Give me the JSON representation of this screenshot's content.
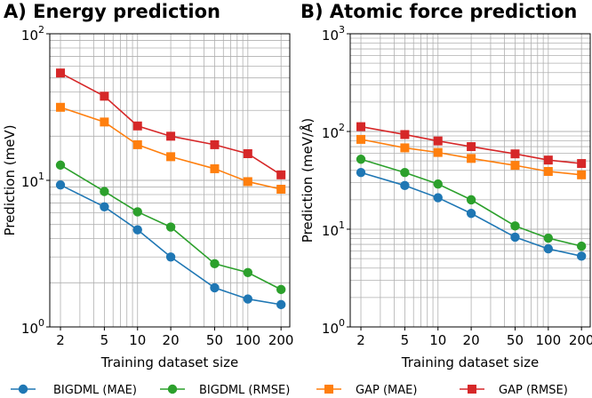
{
  "chart_data": [
    {
      "type": "line",
      "panel_title": "A) Energy prediction",
      "xlabel": "Training dataset size",
      "ylabel": "Prediction (meV)",
      "x": [
        2,
        5,
        10,
        20,
        50,
        100,
        200
      ],
      "x_tick_labels": [
        "2",
        "5",
        "10",
        "20",
        "50",
        "100",
        "200"
      ],
      "xlim": [
        1.6,
        240
      ],
      "yscale": "log",
      "ylim": [
        1,
        100
      ],
      "y_tick_labels": [
        {
          "base": "10",
          "exp": "0",
          "value": 1
        },
        {
          "base": "10",
          "exp": "1",
          "value": 10
        },
        {
          "base": "10",
          "exp": "2",
          "value": 100
        }
      ],
      "grid": true,
      "series": [
        {
          "name": "BIGDML (MAE)",
          "color": "#1f77b4",
          "marker": "circle",
          "values": [
            9.3,
            6.6,
            4.6,
            3.0,
            1.85,
            1.55,
            1.42
          ]
        },
        {
          "name": "BIGDML (RMSE)",
          "color": "#2ca02c",
          "marker": "circle",
          "values": [
            12.7,
            8.4,
            6.1,
            4.8,
            2.7,
            2.35,
            1.8
          ]
        },
        {
          "name": "GAP (MAE)",
          "color": "#ff7f0e",
          "marker": "square",
          "values": [
            31.5,
            25.0,
            17.5,
            14.5,
            12.0,
            9.8,
            8.7
          ]
        },
        {
          "name": "GAP (RMSE)",
          "color": "#d62728",
          "marker": "square",
          "values": [
            54.0,
            37.5,
            23.5,
            20.0,
            17.5,
            15.2,
            10.9
          ]
        }
      ]
    },
    {
      "type": "line",
      "panel_title": "B) Atomic force prediction",
      "xlabel": "Training dataset size",
      "ylabel": "Prediction (meV/Å)",
      "x": [
        2,
        5,
        10,
        20,
        50,
        100,
        200
      ],
      "x_tick_labels": [
        "2",
        "5",
        "10",
        "20",
        "50",
        "100",
        "200"
      ],
      "xlim": [
        1.6,
        240
      ],
      "yscale": "log",
      "ylim": [
        1,
        1000
      ],
      "y_tick_labels": [
        {
          "base": "10",
          "exp": "0",
          "value": 1
        },
        {
          "base": "10",
          "exp": "1",
          "value": 10
        },
        {
          "base": "10",
          "exp": "2",
          "value": 100
        },
        {
          "base": "10",
          "exp": "3",
          "value": 1000
        }
      ],
      "grid": true,
      "series": [
        {
          "name": "BIGDML (MAE)",
          "color": "#1f77b4",
          "marker": "circle",
          "values": [
            38,
            28,
            21,
            14.5,
            8.3,
            6.3,
            5.3
          ]
        },
        {
          "name": "BIGDML (RMSE)",
          "color": "#2ca02c",
          "marker": "circle",
          "values": [
            52,
            38,
            29,
            20,
            10.8,
            8.1,
            6.7
          ]
        },
        {
          "name": "GAP (MAE)",
          "color": "#ff7f0e",
          "marker": "square",
          "values": [
            83,
            68,
            61,
            53,
            45,
            39,
            36
          ]
        },
        {
          "name": "GAP (RMSE)",
          "color": "#d62728",
          "marker": "square",
          "values": [
            112,
            93,
            80,
            70,
            59,
            51,
            47
          ]
        }
      ]
    }
  ],
  "legend": {
    "placement": "bottom",
    "entries": [
      {
        "label": "BIGDML (MAE)",
        "color": "#1f77b4",
        "marker": "circle"
      },
      {
        "label": "BIGDML (RMSE)",
        "color": "#2ca02c",
        "marker": "circle"
      },
      {
        "label": "GAP (MAE)",
        "color": "#ff7f0e",
        "marker": "square"
      },
      {
        "label": "GAP (RMSE)",
        "color": "#d62728",
        "marker": "square"
      }
    ]
  }
}
